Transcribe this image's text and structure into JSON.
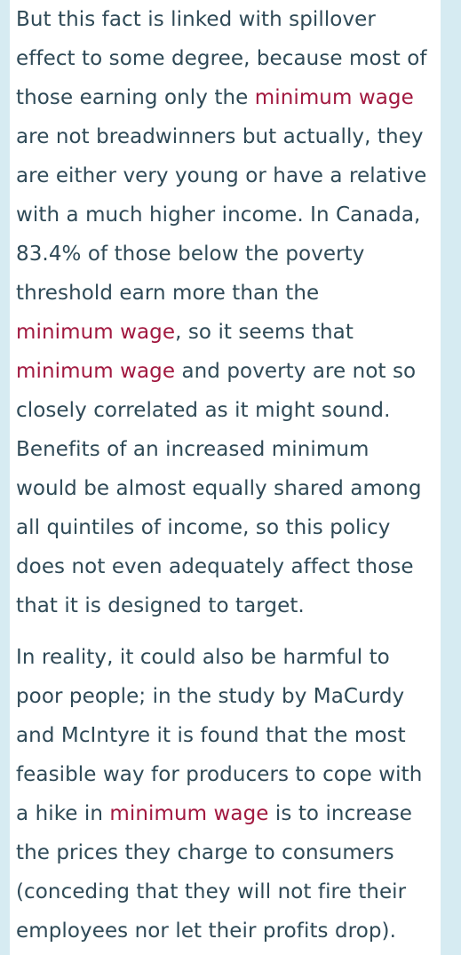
{
  "article": {
    "paragraphs": [
      {
        "lines": [
          {
            "parts": [
              "But this fact is linked with spillover"
            ]
          },
          {
            "parts": [
              "effect to some degree, because most of"
            ]
          },
          {
            "parts": [
              "those earning only the ",
              "minimum wage"
            ]
          },
          {
            "parts": [
              "are not breadwinners but actually, they"
            ]
          },
          {
            "parts": [
              "are either very young or have a relative"
            ]
          },
          {
            "parts": [
              "with a much higher income. In Canada,"
            ]
          },
          {
            "parts": [
              "83.4% of those below the poverty"
            ]
          },
          {
            "parts": [
              "threshold earn more than the"
            ]
          },
          {
            "parts": [
              "minimum wage",
              ", so it seems that"
            ]
          },
          {
            "parts": [
              "minimum wage",
              " and poverty are not so"
            ]
          },
          {
            "parts": [
              "closely correlated as it might sound."
            ]
          },
          {
            "parts": [
              "Benefits of an increased minimum"
            ]
          },
          {
            "parts": [
              "would be almost equally shared among"
            ]
          },
          {
            "parts": [
              "all quintiles of income, so this policy"
            ]
          },
          {
            "parts": [
              "does not even adequately affect those"
            ]
          },
          {
            "parts": [
              "that it is designed to target."
            ]
          }
        ]
      },
      {
        "lines": [
          {
            "parts": [
              "In reality, it could also be harmful to"
            ]
          },
          {
            "parts": [
              "poor people; in the study by MaCurdy"
            ]
          },
          {
            "parts": [
              "and McIntyre it is found that the most"
            ]
          },
          {
            "parts": [
              "feasible way for producers to cope with"
            ]
          },
          {
            "parts": [
              "a hike in ",
              "minimum wage",
              " is to increase"
            ]
          },
          {
            "parts": [
              "the prices they charge to consumers"
            ]
          },
          {
            "parts": [
              "(conceding that they will not fire their"
            ]
          },
          {
            "parts": [
              "employees nor let their profits drop)."
            ]
          }
        ]
      }
    ]
  },
  "theme": {
    "background": "#d6ebf2",
    "panel": "#ffffff",
    "body_text": "#2f4a57",
    "link_text": "#a1183f"
  }
}
